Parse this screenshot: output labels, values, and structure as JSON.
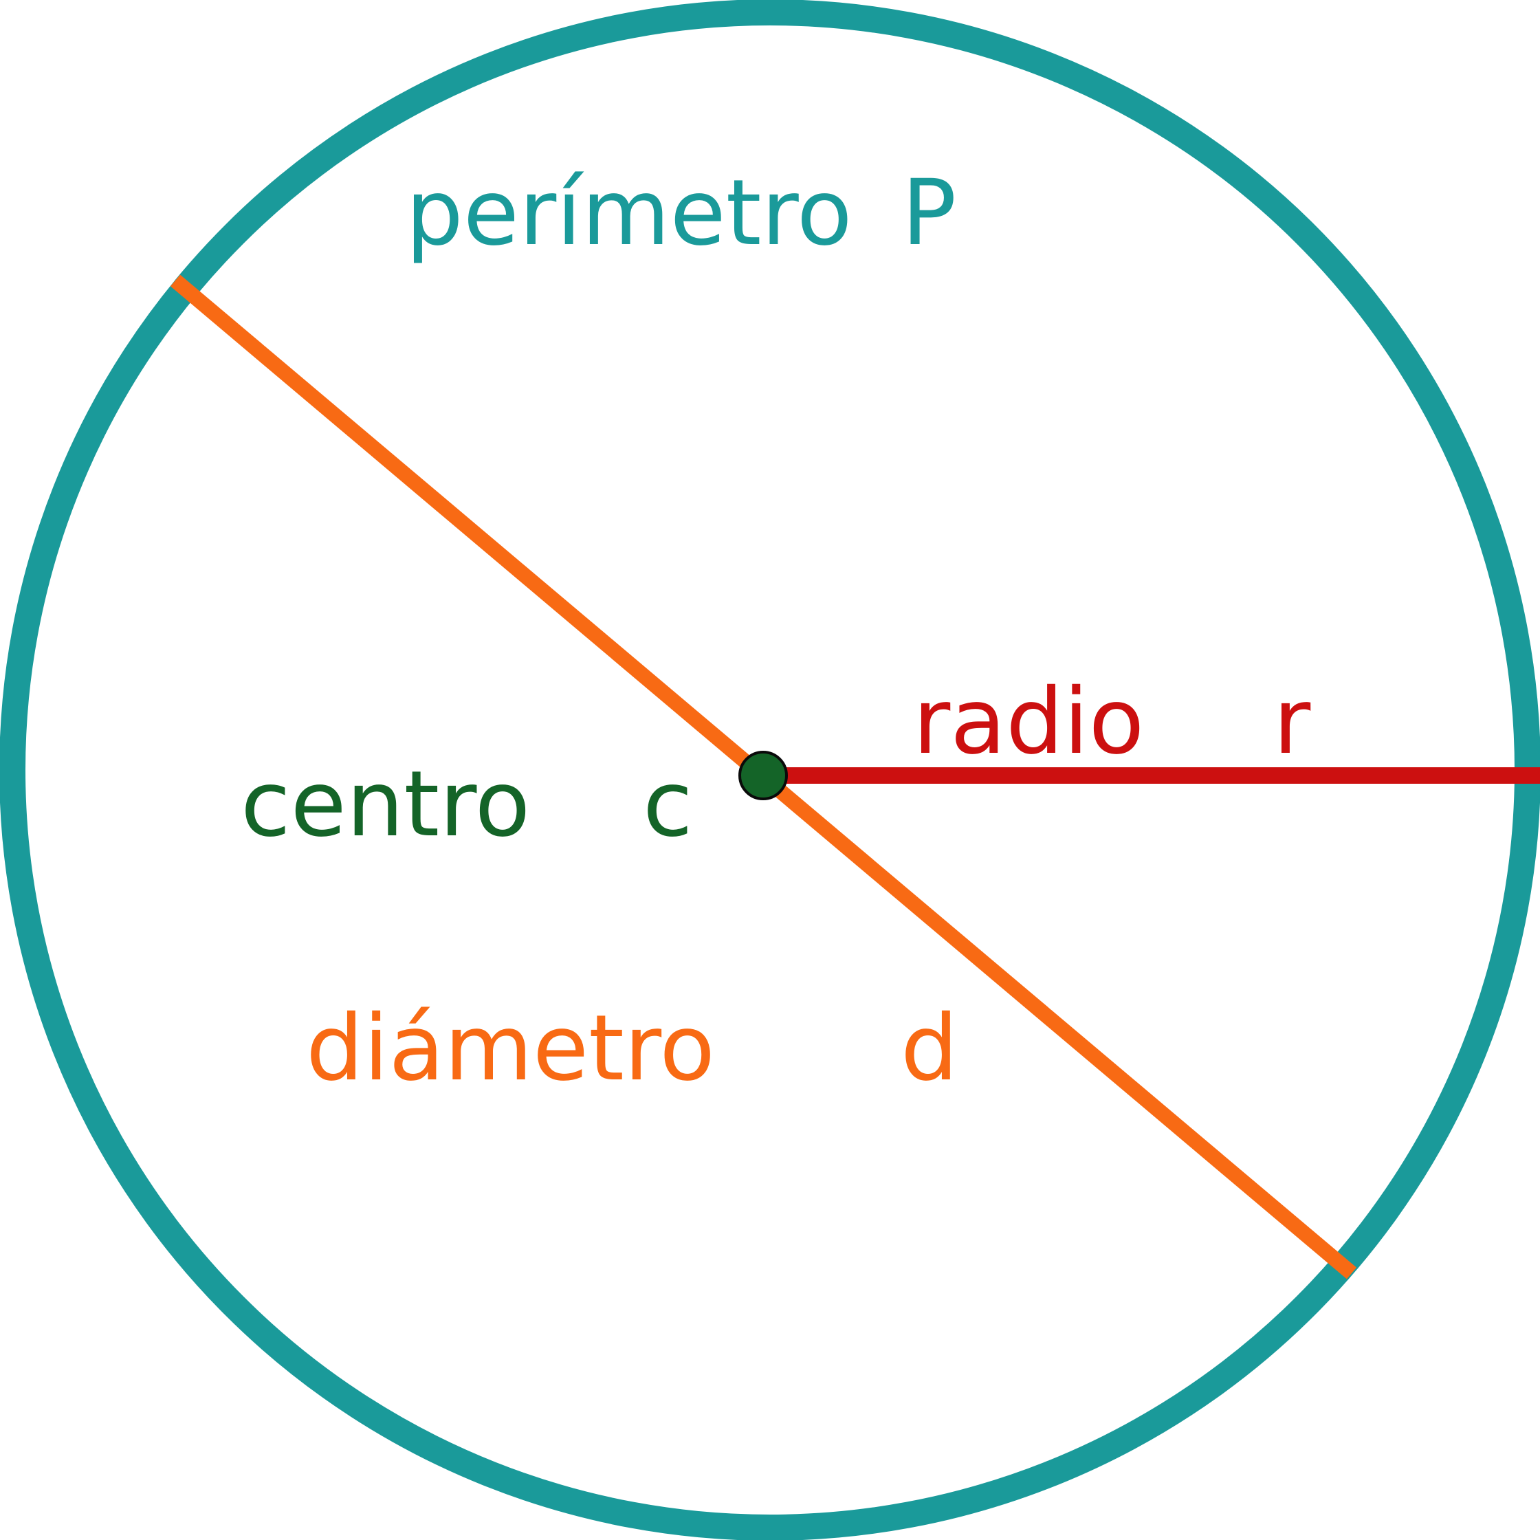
{
  "labels": {
    "perimeter": "perímetro",
    "perimeter_symbol": "P",
    "radius": "radio",
    "radius_symbol": "r",
    "center": "centro",
    "center_symbol": "c",
    "diameter": "diámetro",
    "diameter_symbol": "d"
  },
  "colors": {
    "perimeter": "#1a9a9a",
    "radius": "#cc1010",
    "center": "#146428",
    "diameter": "#f86a14",
    "center_outline": "#0a0a0a",
    "background": "#ffffff"
  }
}
